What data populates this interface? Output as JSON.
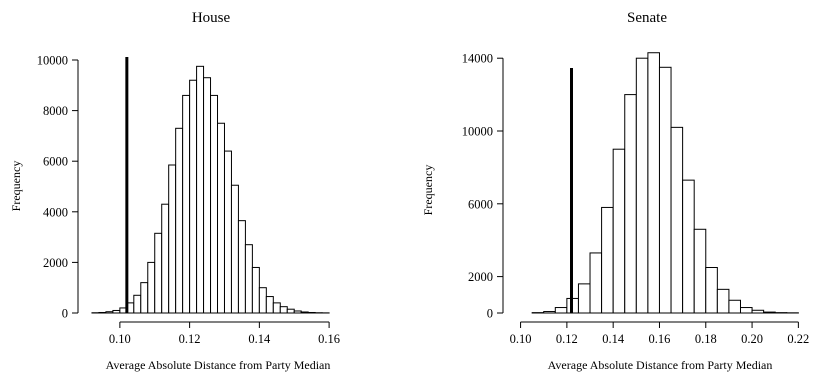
{
  "chart_data": [
    {
      "type": "bar",
      "title": "House",
      "xlabel": "Average Absolute Distance from Party Median",
      "ylabel": "Frequency",
      "xlim": [
        0.09,
        0.168
      ],
      "ylim": [
        0,
        10000
      ],
      "x_ticks": [
        "0.10",
        "0.12",
        "0.14",
        "0.16"
      ],
      "x_tick_values": [
        0.1,
        0.12,
        0.14,
        0.16
      ],
      "y_ticks": [
        "0",
        "2000",
        "4000",
        "6000",
        "8000",
        "10000"
      ],
      "y_tick_values": [
        0,
        2000,
        4000,
        6000,
        8000,
        10000
      ],
      "bin_width": 0.002,
      "bin_starts": [
        0.092,
        0.094,
        0.096,
        0.098,
        0.1,
        0.102,
        0.104,
        0.106,
        0.108,
        0.11,
        0.112,
        0.114,
        0.116,
        0.118,
        0.12,
        0.122,
        0.124,
        0.126,
        0.128,
        0.13,
        0.132,
        0.134,
        0.136,
        0.138,
        0.14,
        0.142,
        0.144,
        0.146,
        0.148,
        0.15,
        0.152,
        0.154,
        0.156,
        0.158,
        0.16,
        0.162,
        0.164
      ],
      "values": [
        10,
        20,
        50,
        100,
        200,
        400,
        700,
        1200,
        2000,
        3150,
        4300,
        5850,
        7300,
        8600,
        9200,
        9750,
        9300,
        8600,
        7500,
        6400,
        5050,
        3650,
        2700,
        1800,
        1000,
        650,
        400,
        250,
        150,
        80,
        40,
        20,
        10,
        5,
        0,
        0,
        0
      ],
      "reference_line_x": 0.102,
      "grid": false
    },
    {
      "type": "bar",
      "title": "Senate",
      "xlabel": "Average Absolute Distance from Party Median",
      "ylabel": "Frequency",
      "xlim": [
        0.095,
        0.222
      ],
      "ylim": [
        0,
        15000
      ],
      "x_ticks": [
        "0.10",
        "0.12",
        "0.14",
        "0.16",
        "0.18",
        "0.20",
        "0.22"
      ],
      "x_tick_values": [
        0.1,
        0.12,
        0.14,
        0.16,
        0.18,
        0.2,
        0.22
      ],
      "y_ticks": [
        "0",
        "2000",
        "6000",
        "10000",
        "14000"
      ],
      "y_tick_values": [
        0,
        2000,
        6000,
        10000,
        14000
      ],
      "bin_width": 0.005,
      "bin_starts": [
        0.105,
        0.11,
        0.115,
        0.12,
        0.125,
        0.13,
        0.135,
        0.14,
        0.145,
        0.15,
        0.155,
        0.16,
        0.165,
        0.17,
        0.175,
        0.18,
        0.185,
        0.19,
        0.195,
        0.2,
        0.205,
        0.21,
        0.215
      ],
      "values": [
        20,
        80,
        300,
        800,
        1600,
        3300,
        5800,
        9000,
        12000,
        14000,
        14300,
        13500,
        10200,
        7300,
        4600,
        2500,
        1300,
        700,
        300,
        150,
        50,
        20,
        10
      ],
      "reference_line_x": 0.122,
      "grid": false
    }
  ]
}
